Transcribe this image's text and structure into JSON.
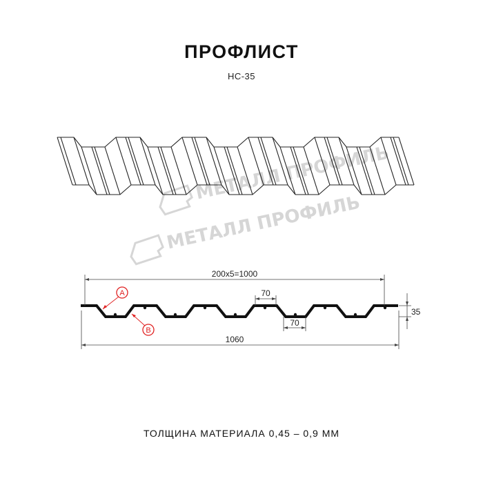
{
  "header": {
    "title": "ПРОФЛИСТ",
    "subtitle": "НС-35"
  },
  "watermark": {
    "logo_text": "МЕТАЛЛ ПРОФИЛЬ",
    "color": "#d6d6d6"
  },
  "drawing": {
    "dimensions": {
      "overall_pitch": "200x5=1000",
      "total_width": "1060",
      "height": "35",
      "crest_width": "70",
      "trough_width": "70"
    },
    "markers": {
      "a": "A",
      "b": "B",
      "color": "#e02020"
    }
  },
  "footer": {
    "thickness_text": "ТОЛЩИНА МАТЕРИАЛА 0,45 – 0,9 ММ"
  }
}
